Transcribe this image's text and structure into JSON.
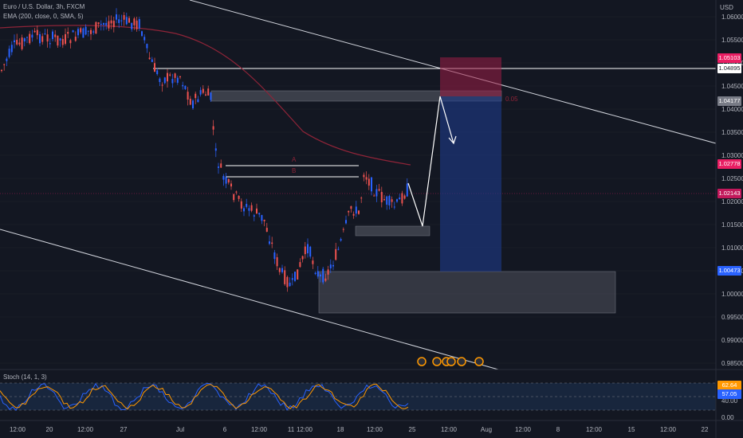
{
  "legend": {
    "symbol": "Euro / U.S. Dollar, 3h, FXCM",
    "ema": "EMA (200, close, 0, SMA, 5)",
    "stoch": "Stoch (14, 1, 3)"
  },
  "currency": "USD",
  "price_axis": [
    "1.06000",
    "1.05500",
    "1.05000",
    "1.04500",
    "1.04000",
    "1.03500",
    "1.03000",
    "1.02500",
    "1.02000",
    "1.01500",
    "1.01000",
    "1.00500",
    "1.00000",
    "0.99500",
    "0.99000",
    "0.98500"
  ],
  "price_tags": [
    {
      "value": "1.05103",
      "color": "#e91e63"
    },
    {
      "value": "1.04895",
      "color": "#ffffff"
    },
    {
      "value": "1.04177",
      "color": "#787b86"
    },
    {
      "value": "1.02778",
      "color": "#e91e63"
    },
    {
      "value": "1.02143",
      "color": "#c2185b"
    },
    {
      "value": "1.00473",
      "color": "#2962ff"
    }
  ],
  "stoch_axis": [
    "80.00",
    "40.00",
    "0.00"
  ],
  "stoch_tags": [
    {
      "value": "62.64",
      "color": "#ff9800"
    },
    {
      "value": "57.05",
      "color": "#2962ff"
    }
  ],
  "time_axis": [
    "12:00",
    "20",
    "12:00",
    "27",
    "Jul",
    "6",
    "12:00",
    "11",
    "12:00",
    "18",
    "12:00",
    "25",
    "12:00",
    "Aug",
    "12:00",
    "8",
    "12:00",
    "15",
    "12:00",
    "22"
  ],
  "annotations": {
    "zone_label": "0.05",
    "line_a": "A",
    "line_b": "B"
  },
  "colors": {
    "bg": "#131722",
    "up": "#2962ff",
    "down": "#ef5350",
    "ema": "#8e2438",
    "grid": "#1e222d",
    "zone": "#5d606b",
    "target": "#1e3a8a",
    "stop": "#7a1a35"
  }
}
